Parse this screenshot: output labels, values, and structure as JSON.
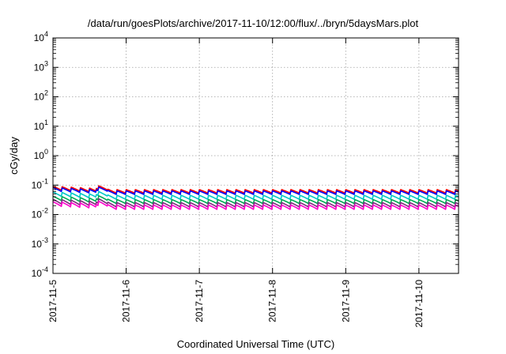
{
  "chart_data": {
    "type": "line",
    "title": "/data/run/goesPlots/archive/2017-11-10/12:00/flux/../bryn/5daysMars.plot",
    "xlabel": "Coordinated Universal Time (UTC)",
    "ylabel": "cGy/day",
    "y_scale": "log",
    "ylim": [
      0.0001,
      10000
    ],
    "xlim": [
      "2017-11-05 00:00",
      "2017-11-10 13:00"
    ],
    "grid": true,
    "x_ticks": [
      {
        "value": "2017-11-05",
        "label": "2017-11-5"
      },
      {
        "value": "2017-11-06",
        "label": "2017-11-6"
      },
      {
        "value": "2017-11-07",
        "label": "2017-11-7"
      },
      {
        "value": "2017-11-08",
        "label": "2017-11-8"
      },
      {
        "value": "2017-11-09",
        "label": "2017-11-9"
      },
      {
        "value": "2017-11-10",
        "label": "2017-11-10"
      }
    ],
    "y_ticks": [
      {
        "value": 0.0001,
        "base": "10",
        "exp": "-4"
      },
      {
        "value": 0.001,
        "base": "10",
        "exp": "-3"
      },
      {
        "value": 0.01,
        "base": "10",
        "exp": "-2"
      },
      {
        "value": 0.1,
        "base": "10",
        "exp": "-1"
      },
      {
        "value": 1,
        "base": "10",
        "exp": "0"
      },
      {
        "value": 10,
        "base": "10",
        "exp": "1"
      },
      {
        "value": 100,
        "base": "10",
        "exp": "2"
      },
      {
        "value": 1000,
        "base": "10",
        "exp": "3"
      },
      {
        "value": 10000,
        "base": "10",
        "exp": "4"
      }
    ],
    "series": [
      {
        "color": "#ff0000",
        "base": 0.052,
        "peak_ratio": 1.35,
        "early_ratio": 1.5
      },
      {
        "color": "#0000ff",
        "base": 0.047,
        "peak_ratio": 1.35,
        "early_ratio": 1.5
      },
      {
        "color": "#00c8c8",
        "base": 0.032,
        "peak_ratio": 1.4,
        "early_ratio": 1.5
      },
      {
        "color": "#00aa55",
        "base": 0.023,
        "peak_ratio": 1.4,
        "early_ratio": 1.5
      },
      {
        "color": "#7a2a7a",
        "base": 0.0175,
        "peak_ratio": 1.45,
        "early_ratio": 1.5
      },
      {
        "color": "#ff00cc",
        "base": 0.0145,
        "peak_ratio": 1.45,
        "early_ratio": 1.5
      }
    ]
  }
}
